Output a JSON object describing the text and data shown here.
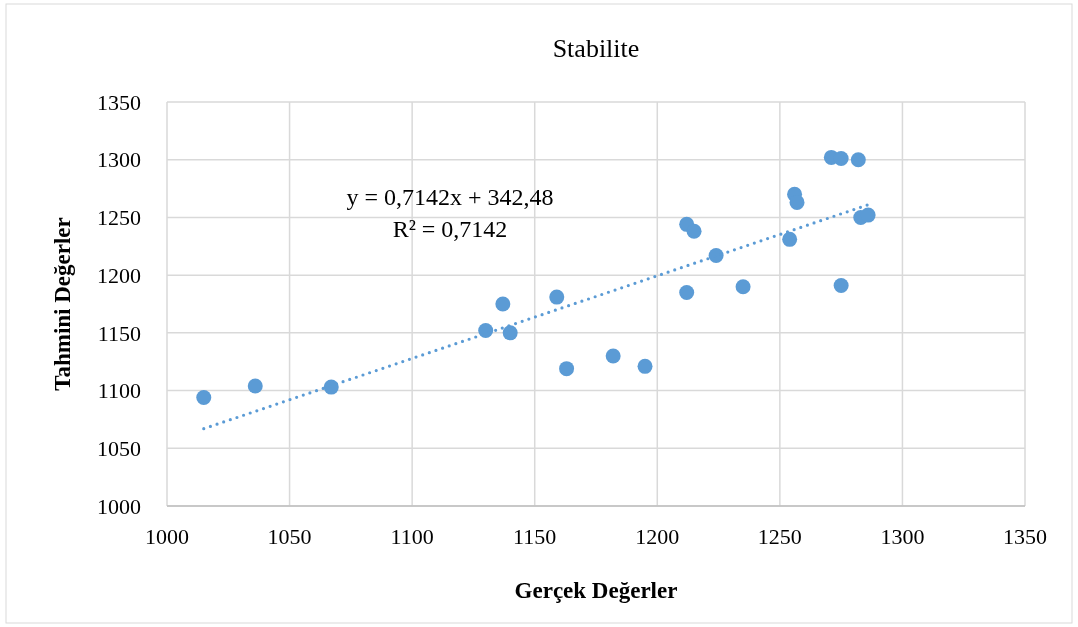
{
  "chart_data": {
    "type": "scatter",
    "title": "Stabilite",
    "xlabel": "Gerçek Değerler",
    "ylabel": "Tahmini Değerler",
    "annotations": [
      "y = 0,7142x + 342,48",
      "R² = 0,7142"
    ],
    "xlim": [
      1000,
      1350
    ],
    "xticks": [
      1000,
      1050,
      1100,
      1150,
      1200,
      1250,
      1300,
      1350
    ],
    "ylim": [
      1000,
      1350
    ],
    "yticks": [
      1000,
      1050,
      1100,
      1150,
      1200,
      1250,
      1300,
      1350
    ],
    "grid": true,
    "marker": "circle",
    "series": [
      {
        "color": "#5b9bd5",
        "x": [
          1015,
          1036,
          1067,
          1130,
          1137,
          1140,
          1159,
          1163,
          1182,
          1195,
          1212,
          1215,
          1212,
          1224,
          1235,
          1254,
          1256,
          1257,
          1271,
          1275,
          1282,
          1275,
          1283,
          1286
        ],
        "values": [
          1094,
          1104,
          1103,
          1152,
          1175,
          1150,
          1181,
          1119,
          1130,
          1121,
          1244,
          1238,
          1185,
          1217,
          1190,
          1231,
          1270,
          1263,
          1302,
          1301,
          1300,
          1191,
          1250,
          1252
        ]
      },
      {
        "type": "line",
        "color": "#5b9bd5",
        "line_style": "dotted",
        "marker": "none",
        "x": [
          1015,
          1286
        ],
        "values": [
          1067,
          1261
        ]
      }
    ]
  }
}
